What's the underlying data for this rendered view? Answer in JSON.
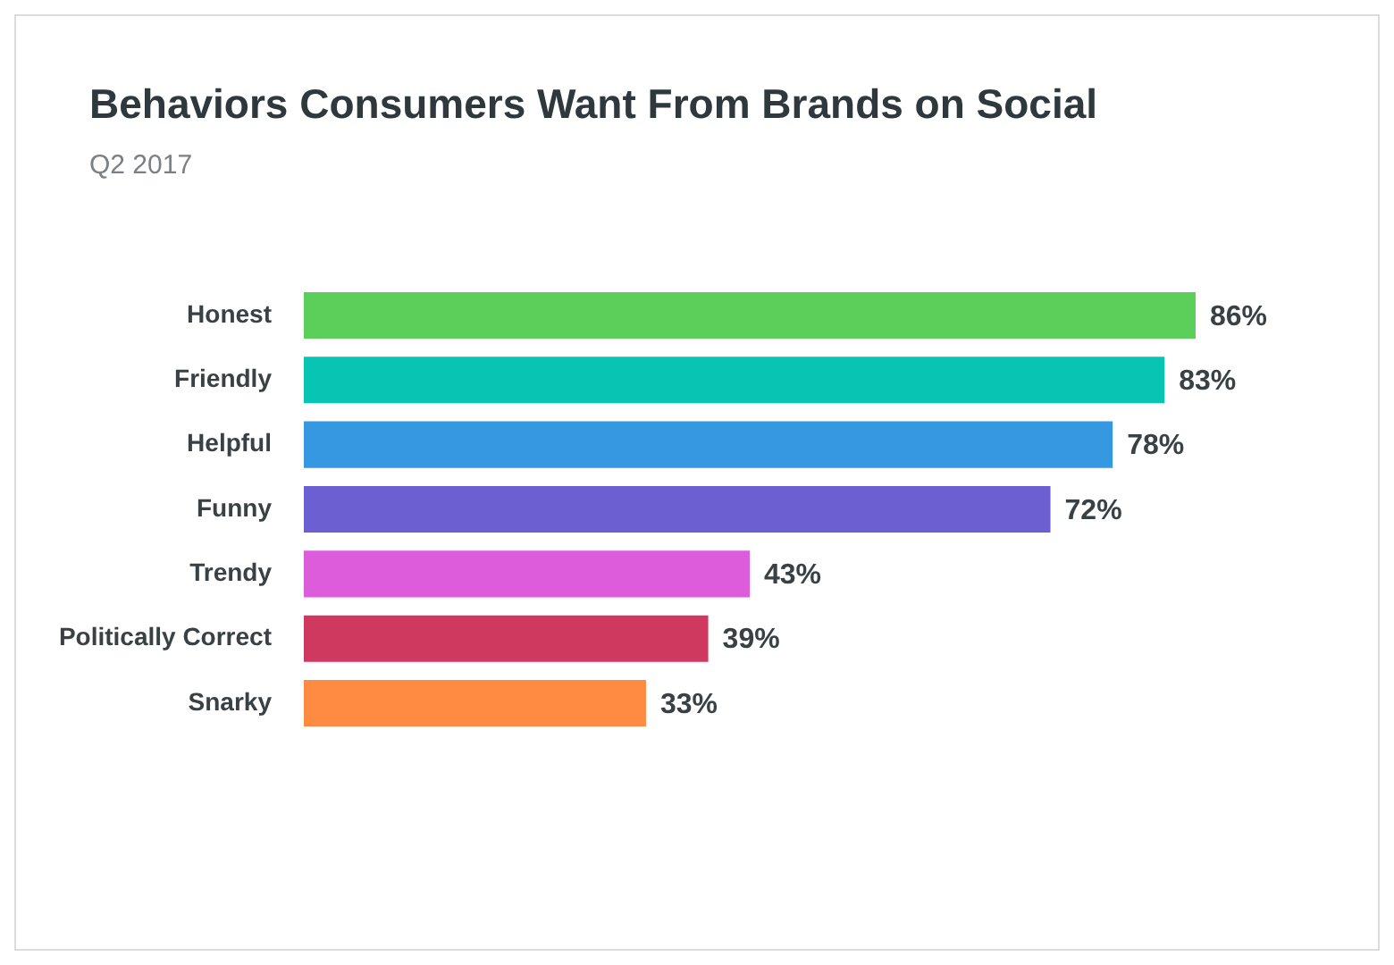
{
  "chart_data": {
    "type": "bar",
    "orientation": "horizontal",
    "title": "Behaviors Consumers Want From Brands on Social",
    "subtitle": "Q2 2017",
    "categories": [
      "Honest",
      "Friendly",
      "Helpful",
      "Funny",
      "Trendy",
      "Politically Correct",
      "Snarky"
    ],
    "values": [
      86,
      83,
      78,
      72,
      43,
      39,
      33
    ],
    "colors": [
      "#5ccf5a",
      "#08c5b3",
      "#3598e1",
      "#6c5fd2",
      "#dc5cdc",
      "#d0395f",
      "#ff8b43"
    ],
    "value_labels": [
      "86%",
      "83%",
      "78%",
      "72%",
      "43%",
      "39%",
      "33%"
    ],
    "legend": false
  }
}
